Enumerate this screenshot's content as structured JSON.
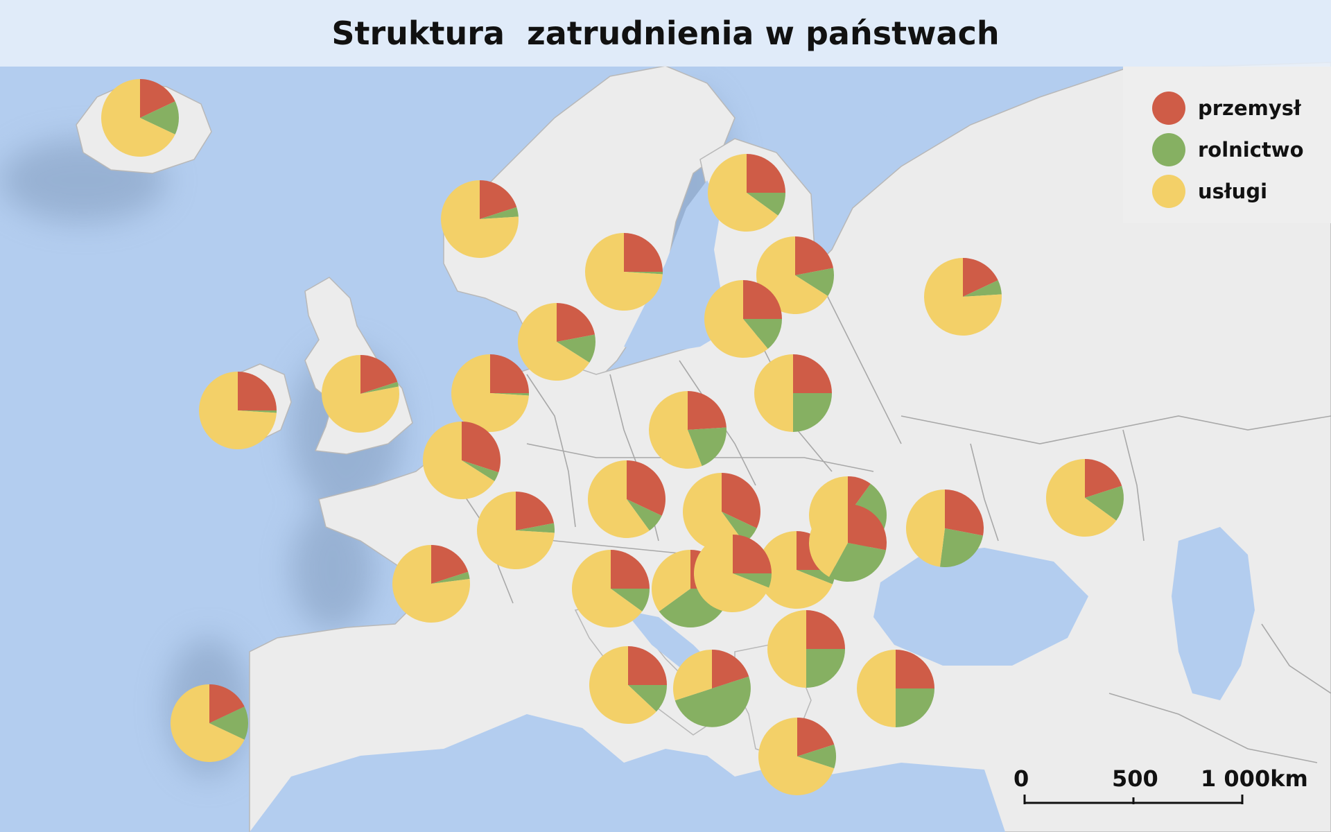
{
  "title": "Struktura  zatrudnienia w państwach",
  "colors": {
    "industry": "#cf5c47",
    "agriculture": "#86b062",
    "services": "#f3d068",
    "sea": "#b3cdef",
    "land": "#ececec",
    "border": "#9a9a9a"
  },
  "legend": [
    {
      "label": "przemysł",
      "color": "#cf5c47"
    },
    {
      "label": "rolnictwo",
      "color": "#86b062"
    },
    {
      "label": "usługi",
      "color": "#f3d068"
    }
  ],
  "scale_bar": {
    "ticks": [
      "0",
      "500",
      "1 000km"
    ]
  },
  "chart_data": {
    "type": "pie",
    "series_order": [
      "przemysł",
      "rolnictwo",
      "usługi"
    ],
    "pies": [
      {
        "values": [
          18,
          14,
          68
        ]
      },
      {
        "values": [
          20,
          4,
          76
        ]
      },
      {
        "values": [
          25,
          10,
          65
        ]
      },
      {
        "values": [
          25,
          1,
          74
        ]
      },
      {
        "values": [
          22,
          12,
          66
        ]
      },
      {
        "values": [
          25,
          14,
          61
        ]
      },
      {
        "values": [
          18,
          6,
          76
        ]
      },
      {
        "values": [
          22,
          12,
          66
        ]
      },
      {
        "values": [
          25,
          1,
          74
        ]
      },
      {
        "values": [
          20,
          2,
          78
        ]
      },
      {
        "values": [
          25,
          25,
          50
        ]
      },
      {
        "values": [
          25,
          1,
          74
        ]
      },
      {
        "values": [
          24,
          20,
          56
        ]
      },
      {
        "values": [
          30,
          4,
          66
        ]
      },
      {
        "values": [
          32,
          8,
          60
        ]
      },
      {
        "values": [
          32,
          8,
          60
        ]
      },
      {
        "values": [
          10,
          35,
          55
        ]
      },
      {
        "values": [
          28,
          24,
          48
        ]
      },
      {
        "values": [
          20,
          3,
          77
        ]
      },
      {
        "values": [
          22,
          4,
          74
        ]
      },
      {
        "values": [
          25,
          6,
          69
        ]
      },
      {
        "values": [
          25,
          10,
          65
        ]
      },
      {
        "values": [
          25,
          40,
          35
        ]
      },
      {
        "values": [
          25,
          6,
          69
        ]
      },
      {
        "values": [
          20,
          15,
          65
        ]
      },
      {
        "values": [
          25,
          25,
          50
        ]
      },
      {
        "values": [
          28,
          30,
          42
        ]
      },
      {
        "values": [
          25,
          25,
          50
        ]
      },
      {
        "values": [
          20,
          50,
          30
        ]
      },
      {
        "values": [
          25,
          12,
          63
        ]
      },
      {
        "values": [
          20,
          10,
          70
        ]
      },
      {
        "values": [
          18,
          14,
          68
        ]
      }
    ]
  }
}
